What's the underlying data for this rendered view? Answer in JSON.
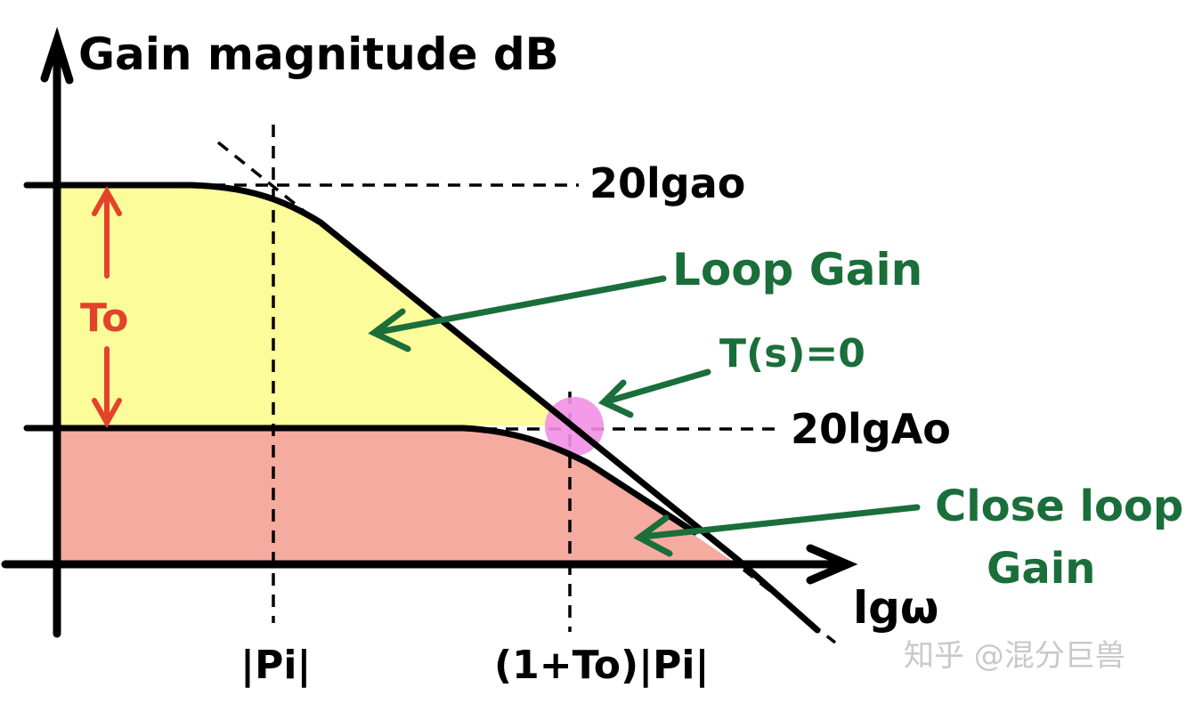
{
  "y_axis_title": "Gain magnitude dB",
  "x_axis_title": "lgω",
  "open_loop_level_label": "20lgao",
  "closed_loop_level_label": "20lgAo",
  "delta_label": "To",
  "loop_gain_label": "Loop Gain",
  "crossover_label": "T(s)=0",
  "close_loop_gain_label_line1": "Close loop",
  "close_loop_gain_label_line2": "Gain",
  "pole_label": "|Pi|",
  "closed_pole_label": "(1+To)|Pi|",
  "watermark": "知乎 @混分巨兽",
  "colors": {
    "axis": "#000000",
    "loop_gain_fill": "#fdfc9b",
    "closed_loop_fill": "#f5aba0",
    "delta_arrow": "#e2432a",
    "annotation_green": "#1a6e3a",
    "crossover_marker": "#f28fe6",
    "watermark": "#c9c9c9"
  }
}
